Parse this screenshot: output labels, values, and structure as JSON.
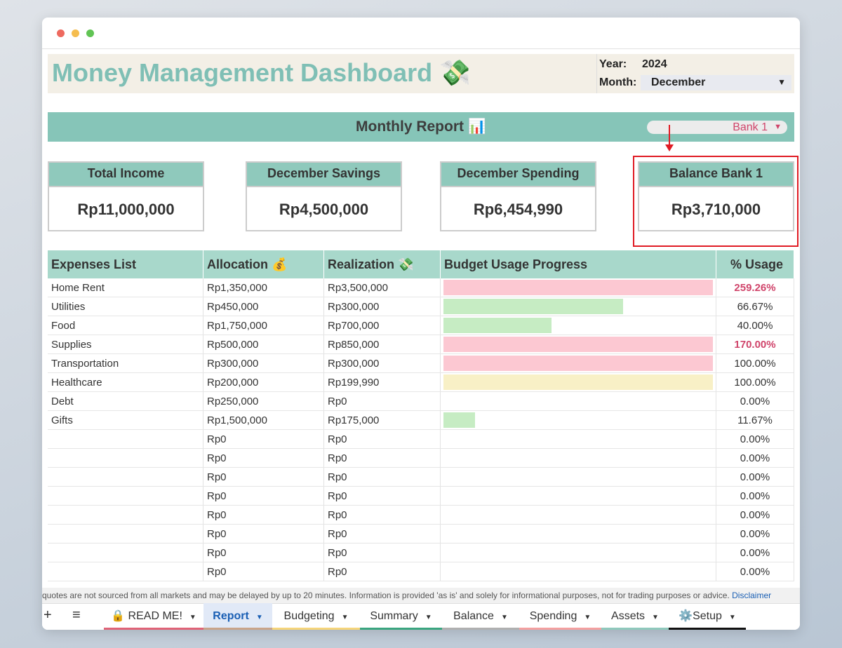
{
  "header": {
    "title": "Money Management Dashboard 💸",
    "year_label": "Year:",
    "year": "2024",
    "month_label": "Month:",
    "month": "December"
  },
  "report": {
    "title": "Monthly Report 📊",
    "bank": "Bank 1"
  },
  "cards": [
    {
      "label": "Total Income",
      "value": "Rp11,000,000"
    },
    {
      "label": "December Savings",
      "value": "Rp4,500,000"
    },
    {
      "label": "December Spending",
      "value": "Rp6,454,990"
    },
    {
      "label": "Balance Bank 1",
      "value": "Rp3,710,000"
    }
  ],
  "table": {
    "columns": [
      "Expenses List",
      "Allocation 💰",
      "Realization 💸",
      "Budget Usage Progress",
      "% Usage"
    ],
    "rows": [
      {
        "item": "Home Rent",
        "allocation": "Rp1,350,000",
        "realization": "Rp3,500,000",
        "usage": "259.26%",
        "bar_color": "#fcc8d2",
        "usage_color": "#d0456b"
      },
      {
        "item": "Utilities",
        "allocation": "Rp450,000",
        "realization": "Rp300,000",
        "usage": "66.67%",
        "bar_color": "#c6ecc3"
      },
      {
        "item": "Food",
        "allocation": "Rp1,750,000",
        "realization": "Rp700,000",
        "usage": "40.00%",
        "bar_color": "#c6ecc3"
      },
      {
        "item": "Supplies",
        "allocation": "Rp500,000",
        "realization": "Rp850,000",
        "usage": "170.00%",
        "bar_color": "#fcc8d2",
        "usage_color": "#d0456b"
      },
      {
        "item": "Transportation",
        "allocation": "Rp300,000",
        "realization": "Rp300,000",
        "usage": "100.00%",
        "bar_color": "#fcc8d2"
      },
      {
        "item": "Healthcare",
        "allocation": "Rp200,000",
        "realization": "Rp199,990",
        "usage": "100.00%",
        "bar_color": "#f8f0c6"
      },
      {
        "item": "Debt",
        "allocation": "Rp250,000",
        "realization": "Rp0",
        "usage": "0.00%"
      },
      {
        "item": "Gifts",
        "allocation": "Rp1,500,000",
        "realization": "Rp175,000",
        "usage": "11.67%",
        "bar_color": "#c6ecc3"
      },
      {
        "allocation": "Rp0",
        "realization": "Rp0",
        "usage": "0.00%"
      },
      {
        "allocation": "Rp0",
        "realization": "Rp0",
        "usage": "0.00%"
      },
      {
        "allocation": "Rp0",
        "realization": "Rp0",
        "usage": "0.00%"
      },
      {
        "allocation": "Rp0",
        "realization": "Rp0",
        "usage": "0.00%"
      },
      {
        "allocation": "Rp0",
        "realization": "Rp0",
        "usage": "0.00%"
      },
      {
        "allocation": "Rp0",
        "realization": "Rp0",
        "usage": "0.00%"
      },
      {
        "allocation": "Rp0",
        "realization": "Rp0",
        "usage": "0.00%"
      },
      {
        "allocation": "Rp0",
        "realization": "Rp0",
        "usage": "0.00%"
      }
    ]
  },
  "notice": {
    "text": "quotes are not sourced from all markets and may be delayed by up to 20 minutes. Information is provided 'as is' and solely for informational purposes, not for trading purposes or advice.",
    "link": "Disclaimer"
  },
  "tabs": [
    {
      "label": "🔒 READ ME!",
      "color": "#e06377"
    },
    {
      "label": "Report",
      "color": "#c9a48a",
      "active": true
    },
    {
      "label": "Budgeting",
      "color": "#f6d57a"
    },
    {
      "label": "Summary",
      "color": "#3aa57f"
    },
    {
      "label": "Balance",
      "color": "#b0b0b0"
    },
    {
      "label": "Spending",
      "color": "#f4a0a0"
    },
    {
      "label": "Assets",
      "color": "#8fc9bc"
    },
    {
      "label": "⚙️Setup",
      "color": "#111111"
    }
  ]
}
